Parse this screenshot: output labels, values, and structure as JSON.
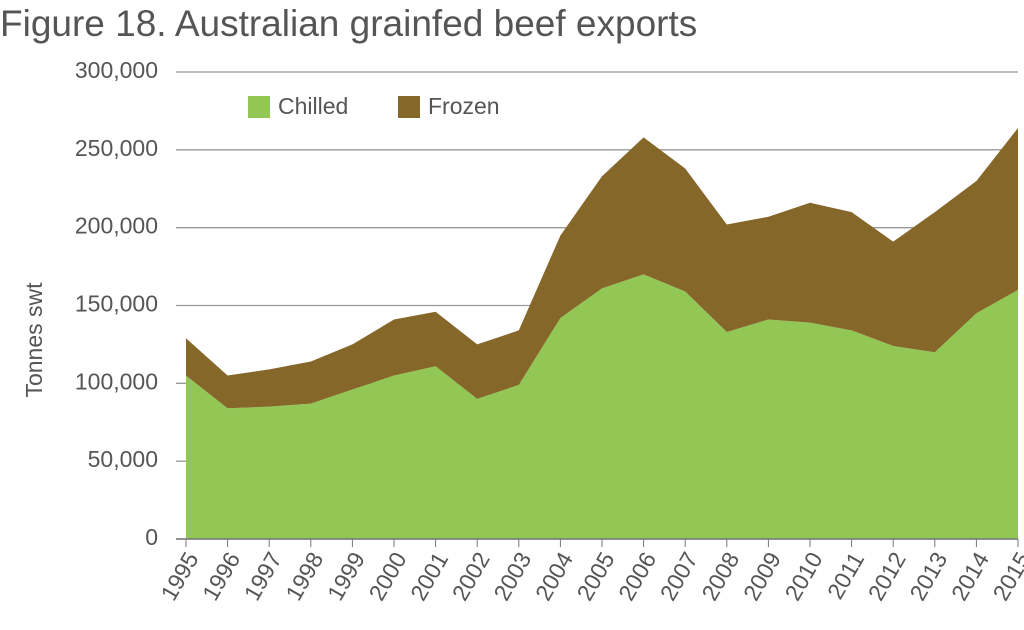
{
  "chart_data": {
    "type": "stacked_area",
    "title": "Figure 18. Australian grainfed beef exports",
    "y_label": "Tonnes  swt",
    "categories": [
      "1995",
      "1996",
      "1997",
      "1998",
      "1999",
      "2000",
      "2001",
      "2002",
      "2003",
      "2004",
      "2005",
      "2006",
      "2007",
      "2008",
      "2009",
      "2010",
      "2011",
      "2012",
      "2013",
      "2014",
      "2015"
    ],
    "series": [
      {
        "name": "Chilled",
        "color": "#92c756",
        "values": [
          105000,
          84000,
          85000,
          87000,
          96000,
          105000,
          111000,
          90000,
          99000,
          142000,
          161000,
          170000,
          159000,
          133000,
          141000,
          139000,
          134000,
          124000,
          120000,
          145000,
          160000
        ]
      },
      {
        "name": "Frozen",
        "color": "#86672a",
        "values": [
          24000,
          21000,
          24000,
          27000,
          29000,
          36000,
          35000,
          35000,
          35000,
          53000,
          72000,
          88000,
          79000,
          69000,
          66000,
          77000,
          76000,
          67000,
          90000,
          85000,
          104000
        ]
      }
    ],
    "ylim": [
      0,
      300000
    ],
    "yticks": [
      0,
      {
        "value": 50000,
        "label": "50,000"
      },
      {
        "value": 100000,
        "label": "100,000"
      },
      {
        "value": 150000,
        "label": "150,000"
      },
      {
        "value": 200000,
        "label": "200,000"
      },
      {
        "value": 250000,
        "label": "250,000"
      },
      {
        "value": 300000,
        "label": "300,000"
      }
    ],
    "grid": true
  }
}
